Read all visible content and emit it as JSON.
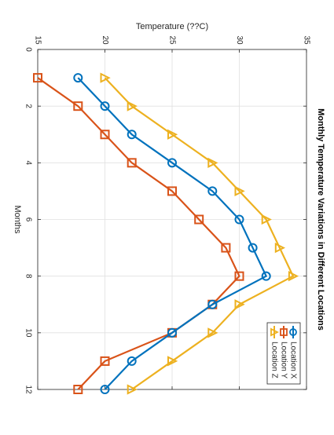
{
  "chart_data": {
    "type": "line",
    "title": "Monthly Temperature Variations in Different Locations",
    "xlabel": "Months",
    "ylabel": "Temperature (??C)",
    "xlim": [
      0,
      12
    ],
    "ylim": [
      15,
      35
    ],
    "xticks": [
      "0",
      "2",
      "4",
      "6",
      "8",
      "10",
      "12"
    ],
    "yticks": [
      "15",
      "20",
      "25",
      "30",
      "35"
    ],
    "grid": true,
    "legend_position": "bottom-right",
    "x": [
      1,
      2,
      3,
      4,
      5,
      6,
      7,
      8,
      9,
      10,
      11,
      12
    ],
    "series": [
      {
        "name": "Location X",
        "color": "#0072BD",
        "marker": "circle",
        "values": [
          18,
          20,
          22,
          25,
          28,
          30,
          31,
          32,
          28,
          25,
          22,
          20
        ]
      },
      {
        "name": "Location Y",
        "color": "#D95319",
        "marker": "square",
        "values": [
          15,
          18,
          20,
          22,
          25,
          27,
          29,
          30,
          28,
          25,
          20,
          18
        ]
      },
      {
        "name": "Location Z",
        "color": "#EDB120",
        "marker": "triangle",
        "values": [
          20,
          22,
          25,
          28,
          30,
          32,
          33,
          34,
          30,
          28,
          25,
          22
        ]
      }
    ]
  }
}
